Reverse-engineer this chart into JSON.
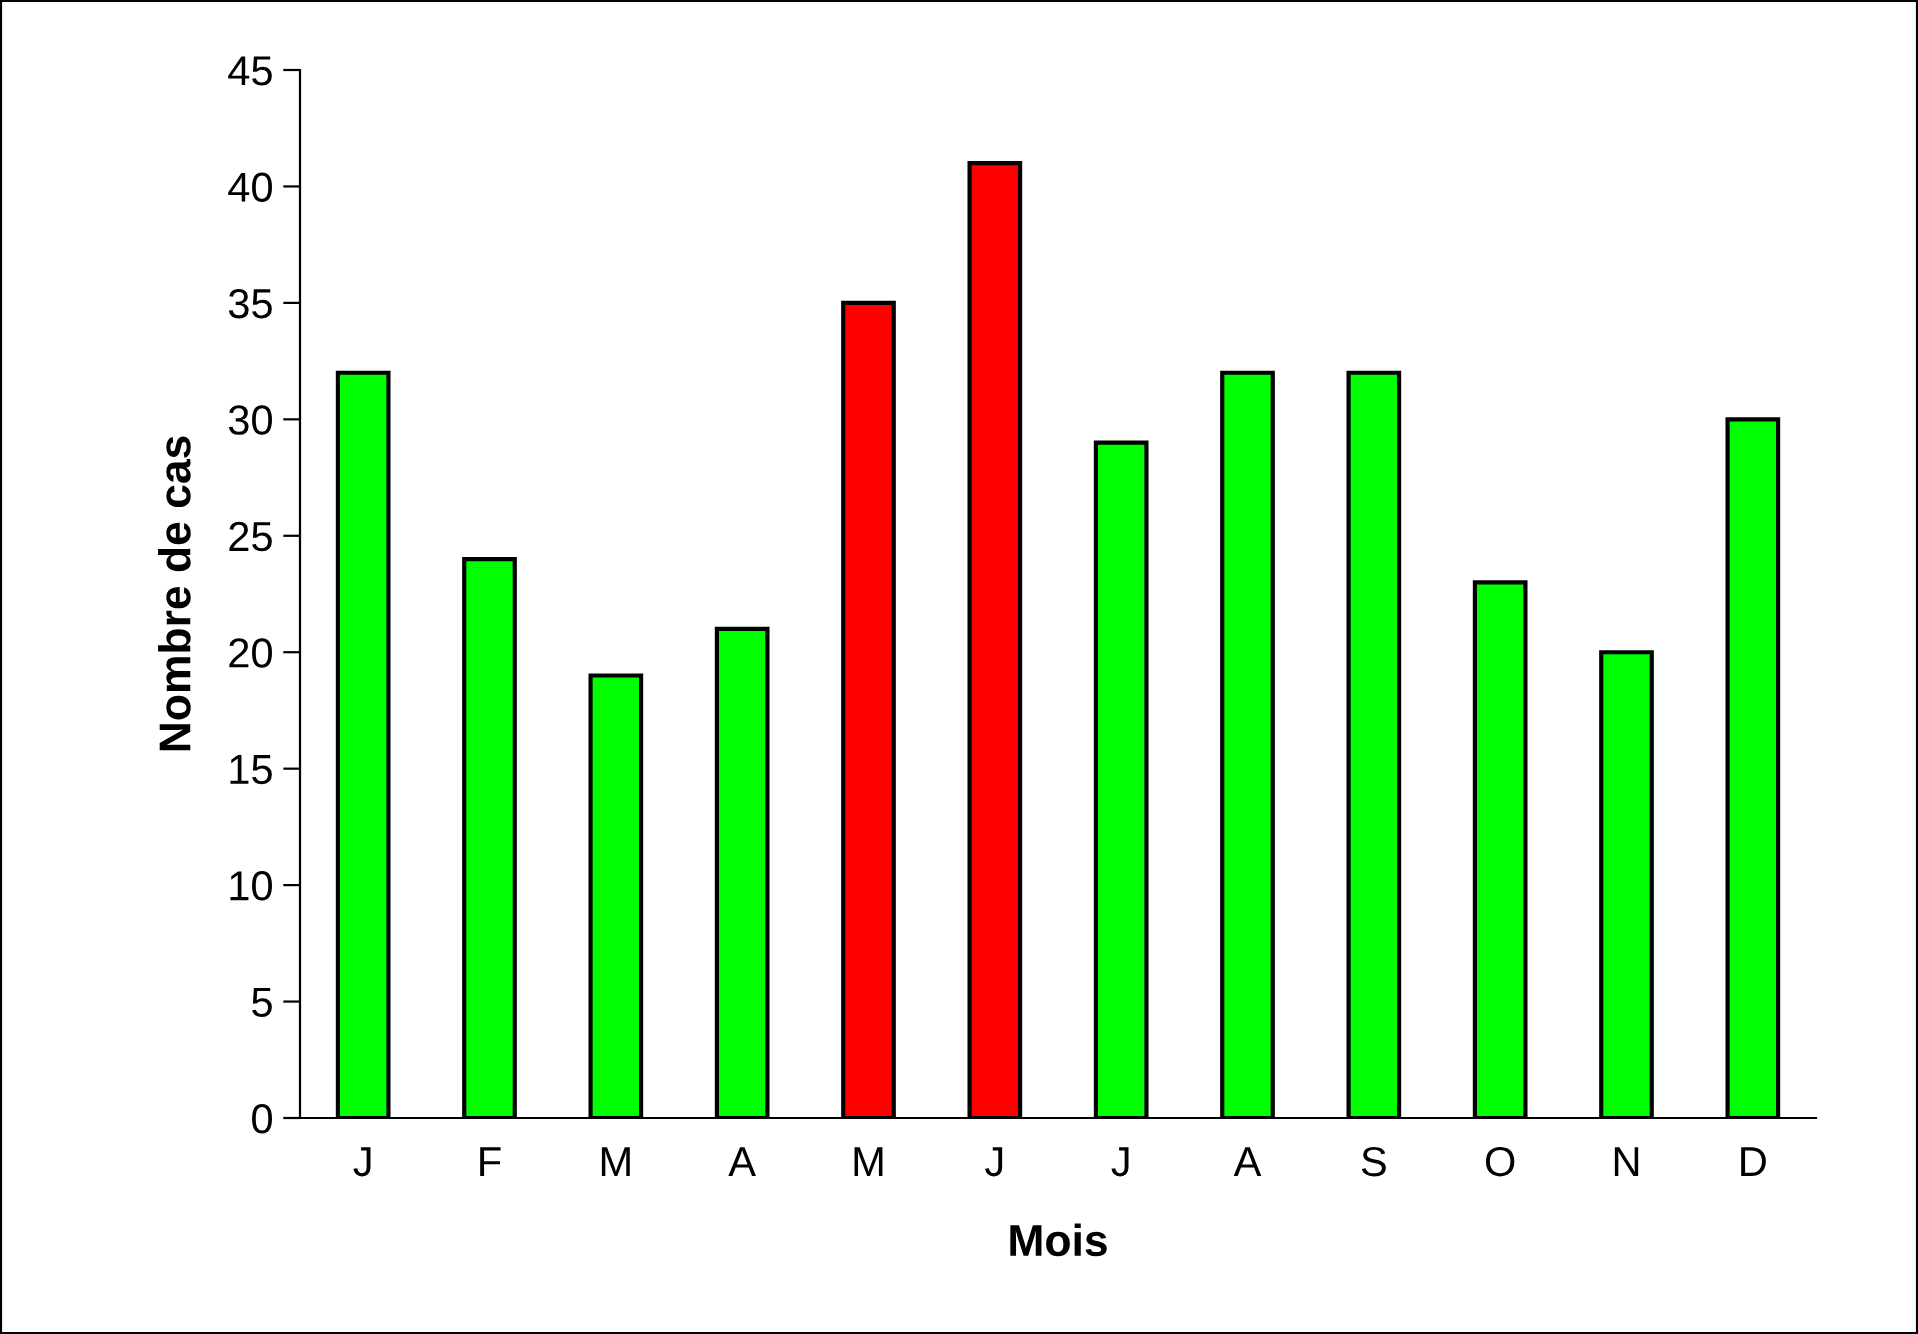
{
  "chart_data": {
    "type": "bar",
    "xlabel": "Mois",
    "ylabel": "Nombre de cas",
    "categories": [
      "J",
      "F",
      "M",
      "A",
      "M",
      "J",
      "J",
      "A",
      "S",
      "O",
      "N",
      "D"
    ],
    "values": [
      32,
      24,
      19,
      21,
      35,
      41,
      29,
      32,
      32,
      23,
      20,
      30
    ],
    "colors": [
      "#00ff00",
      "#00ff00",
      "#00ff00",
      "#00ff00",
      "#ff0000",
      "#ff0000",
      "#00ff00",
      "#00ff00",
      "#00ff00",
      "#00ff00",
      "#00ff00",
      "#00ff00"
    ],
    "ylim": [
      0,
      45
    ],
    "yticks": [
      0,
      5,
      10,
      15,
      20,
      25,
      30,
      35,
      40,
      45
    ],
    "grid": false,
    "legend": false
  }
}
